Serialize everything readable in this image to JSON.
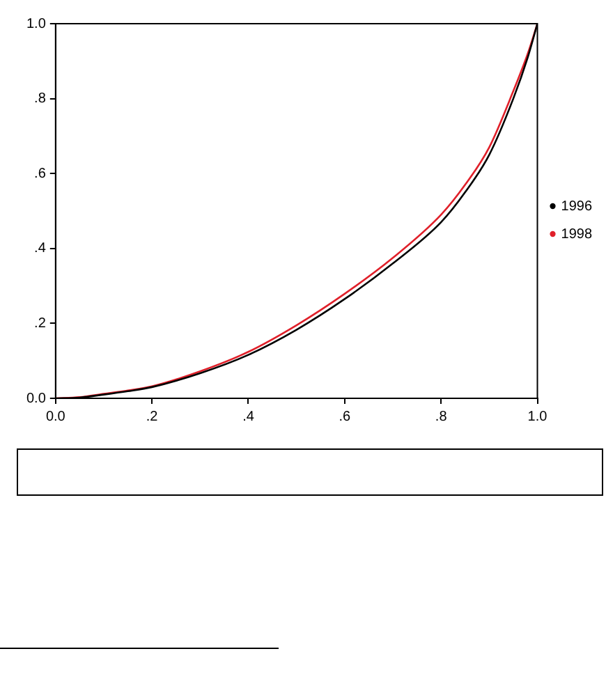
{
  "chart_data": {
    "type": "line",
    "x": [
      0,
      0.05,
      0.1,
      0.15,
      0.2,
      0.3,
      0.4,
      0.5,
      0.6,
      0.7,
      0.8,
      0.85,
      0.9,
      0.95,
      0.98,
      1
    ],
    "series": [
      {
        "name": "1996",
        "color": "#000000",
        "values": [
          0,
          0.002,
          0.01,
          0.019,
          0.03,
          0.067,
          0.116,
          0.183,
          0.265,
          0.36,
          0.47,
          0.55,
          0.65,
          0.8,
          0.91,
          1
        ]
      },
      {
        "name": "1998",
        "color": "#e0202a",
        "values": [
          0,
          0.003,
          0.012,
          0.021,
          0.032,
          0.072,
          0.124,
          0.195,
          0.279,
          0.375,
          0.49,
          0.57,
          0.67,
          0.82,
          0.92,
          1
        ]
      }
    ],
    "xlim": [
      0,
      1
    ],
    "ylim": [
      0,
      1
    ],
    "xticks": [
      {
        "value": 0,
        "label": "0.0"
      },
      {
        "value": 0.2,
        "label": ".2"
      },
      {
        "value": 0.4,
        "label": ".4"
      },
      {
        "value": 0.6,
        "label": ".6"
      },
      {
        "value": 0.8,
        "label": ".8"
      },
      {
        "value": 1,
        "label": "1.0"
      }
    ],
    "yticks": [
      {
        "value": 0,
        "label": "0.0"
      },
      {
        "value": 0.2,
        "label": ".2"
      },
      {
        "value": 0.4,
        "label": ".4"
      },
      {
        "value": 0.6,
        "label": ".6"
      },
      {
        "value": 0.8,
        "label": ".8"
      },
      {
        "value": 1,
        "label": "1.0"
      }
    ],
    "grid": false,
    "legend": "right",
    "marker": "none",
    "line_style": "solid"
  }
}
